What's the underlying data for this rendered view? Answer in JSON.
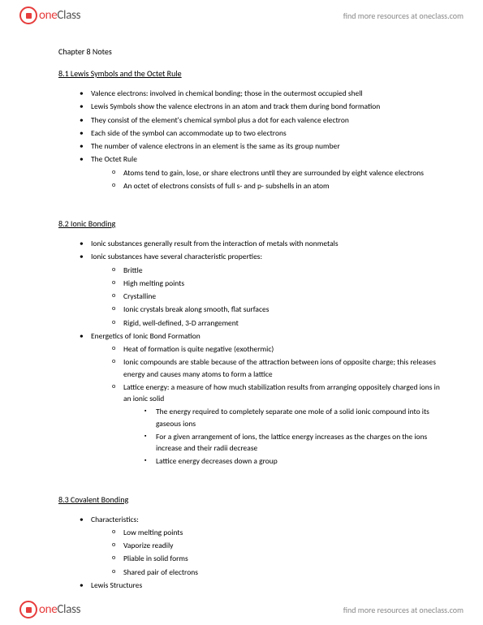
{
  "brand": {
    "name_part1": "one",
    "name_part2": "Class",
    "header_link": "find more resources at oneclass.com",
    "footer_link": "find more resources at oneclass.com"
  },
  "chapter_title": "Chapter 8 Notes",
  "sections": [
    {
      "heading": "8.1 Lewis Symbols and the Octet Rule",
      "items": [
        {
          "text": "Valence electrons: involved in chemical bonding; those in the outermost occupied shell"
        },
        {
          "text": "Lewis Symbols show the valence electrons in an atom and track them during bond formation"
        },
        {
          "text": "They consist of the element's chemical symbol plus a dot for each valence electron"
        },
        {
          "text": "Each side of the symbol can accommodate up to two electrons"
        },
        {
          "text": "The number of valence electrons in an element is the same as its group number"
        },
        {
          "text": "The Octet Rule",
          "children": [
            {
              "text": "Atoms tend to gain, lose, or share electrons until they are surrounded by eight valence electrons"
            },
            {
              "text": "An octet of electrons consists of full s- and p- subshells in an atom"
            }
          ]
        }
      ]
    },
    {
      "heading": "8.2 Ionic Bonding",
      "items": [
        {
          "text": "Ionic substances generally result from the interaction of metals with nonmetals"
        },
        {
          "text": "Ionic substances have several characteristic properties:",
          "children": [
            {
              "text": "Brittle"
            },
            {
              "text": "High melting points"
            },
            {
              "text": "Crystalline"
            },
            {
              "text": "Ionic crystals break along smooth, flat surfaces"
            },
            {
              "text": "Rigid, well-defined, 3-D arrangement"
            }
          ]
        },
        {
          "text": "Energetics of Ionic Bond Formation",
          "children": [
            {
              "text": "Heat of formation is quite negative (exothermic)"
            },
            {
              "text": "Ionic compounds are stable because of the attraction between ions of opposite charge; this releases energy and causes many atoms to form a lattice"
            },
            {
              "text": "Lattice energy: a measure of how much stabilization results from arranging oppositely charged ions in an ionic solid",
              "children": [
                {
                  "text": "The energy required to completely separate one mole of a solid ionic compound into its gaseous ions"
                },
                {
                  "text": "For a given arrangement of ions, the lattice energy increases as the charges on the ions increase and their radii decrease"
                },
                {
                  "text": "Lattice energy decreases down a group"
                }
              ]
            }
          ]
        }
      ]
    },
    {
      "heading": "8.3 Covalent Bonding",
      "items": [
        {
          "text": "Characteristics:",
          "children": [
            {
              "text": "Low melting points"
            },
            {
              "text": "Vaporize readily"
            },
            {
              "text": "Pliable in solid forms"
            },
            {
              "text": "Shared pair of electrons"
            }
          ]
        },
        {
          "text": "Lewis Structures"
        }
      ]
    }
  ]
}
